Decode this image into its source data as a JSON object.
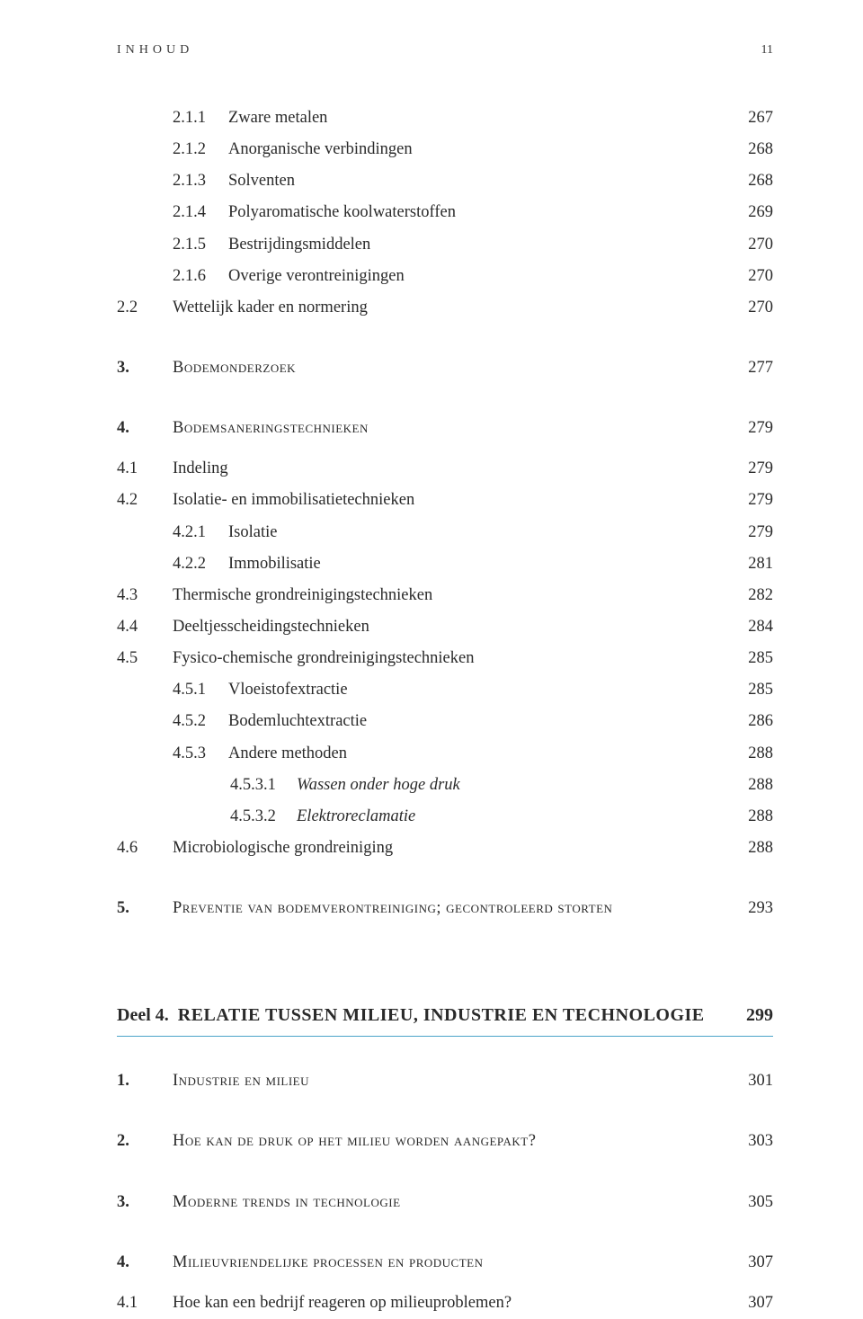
{
  "header": {
    "label": "INHOUD",
    "page": "11"
  },
  "s2_1": [
    {
      "num": "2.1.1",
      "label": "Zware metalen",
      "pg": "267"
    },
    {
      "num": "2.1.2",
      "label": "Anorganische verbindingen",
      "pg": "268"
    },
    {
      "num": "2.1.3",
      "label": "Solventen",
      "pg": "268"
    },
    {
      "num": "2.1.4",
      "label": "Polyaromatische koolwaterstoffen",
      "pg": "269"
    },
    {
      "num": "2.1.5",
      "label": "Bestrijdingsmiddelen",
      "pg": "270"
    },
    {
      "num": "2.1.6",
      "label": "Overige verontreinigingen",
      "pg": "270"
    }
  ],
  "s2_2": {
    "num": "2.2",
    "label": "Wettelijk kader en normering",
    "pg": "270"
  },
  "ch3": {
    "num": "3.",
    "label": "Bodemonderzoek",
    "pg": "277"
  },
  "ch4": {
    "num": "4.",
    "label": "Bodemsaneringstechnieken",
    "pg": "279"
  },
  "s4_1": {
    "num": "4.1",
    "label": "Indeling",
    "pg": "279"
  },
  "s4_2": {
    "num": "4.2",
    "label": "Isolatie- en immobilisatietechnieken",
    "pg": "279"
  },
  "s4_2_1": {
    "num": "4.2.1",
    "label": "Isolatie",
    "pg": "279"
  },
  "s4_2_2": {
    "num": "4.2.2",
    "label": "Immobilisatie",
    "pg": "281"
  },
  "s4_3": {
    "num": "4.3",
    "label": "Thermische grondreinigingstechnieken",
    "pg": "282"
  },
  "s4_4": {
    "num": "4.4",
    "label": "Deeltjesscheidingstechnieken",
    "pg": "284"
  },
  "s4_5": {
    "num": "4.5",
    "label": "Fysico-chemische grondreinigingstechnieken",
    "pg": "285"
  },
  "s4_5_1": {
    "num": "4.5.1",
    "label": "Vloeistofextractie",
    "pg": "285"
  },
  "s4_5_2": {
    "num": "4.5.2",
    "label": "Bodemluchtextractie",
    "pg": "286"
  },
  "s4_5_3": {
    "num": "4.5.3",
    "label": "Andere methoden",
    "pg": "288"
  },
  "s4_5_3_1": {
    "num": "4.5.3.1",
    "label": "Wassen onder hoge druk",
    "pg": "288"
  },
  "s4_5_3_2": {
    "num": "4.5.3.2",
    "label": "Elektroreclamatie",
    "pg": "288"
  },
  "s4_6": {
    "num": "4.6",
    "label": "Microbiologische grondreiniging",
    "pg": "288"
  },
  "ch5": {
    "num": "5.",
    "label": "Preventie van bodemverontreiniging; gecontroleerd storten",
    "pg": "293"
  },
  "part4": {
    "prefix": "Deel 4.",
    "title": "RELATIE TUSSEN MILIEU, INDUSTRIE EN TECHNOLOGIE",
    "pg": "299"
  },
  "p4_ch1": {
    "num": "1.",
    "label": "Industrie en milieu",
    "pg": "301"
  },
  "p4_ch2": {
    "num": "2.",
    "label": "Hoe kan de druk op het milieu worden aangepakt?",
    "pg": "303"
  },
  "p4_ch3": {
    "num": "3.",
    "label": "Moderne trends in technologie",
    "pg": "305"
  },
  "p4_ch4": {
    "num": "4.",
    "label": "Milieuvriendelijke processen en producten",
    "pg": "307"
  },
  "p4_s4_1": {
    "num": "4.1",
    "label": "Hoe kan een bedrijf reageren op milieuproblemen?",
    "pg": "307"
  },
  "colors": {
    "rule": "#4aa3c9",
    "text": "#2a2a2a"
  }
}
